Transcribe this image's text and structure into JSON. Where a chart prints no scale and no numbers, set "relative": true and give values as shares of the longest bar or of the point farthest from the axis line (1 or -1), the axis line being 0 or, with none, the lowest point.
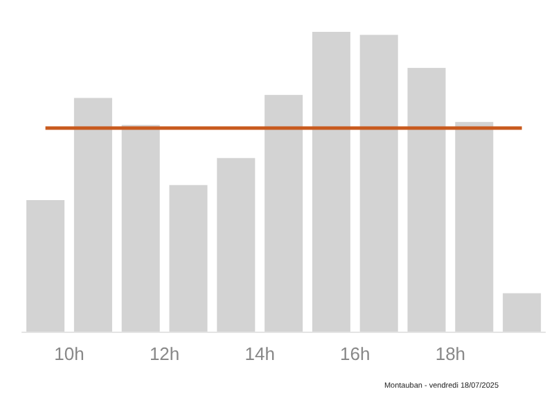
{
  "chart_data": {
    "type": "bar",
    "relative": true,
    "x": [
      9.5,
      10.5,
      11.5,
      12.5,
      13.5,
      14.5,
      15.5,
      16.5,
      17.5,
      18.5,
      19.5
    ],
    "values": [
      0.44,
      0.78,
      0.69,
      0.49,
      0.58,
      0.79,
      1,
      0.99,
      0.88,
      0.7,
      0.13
    ],
    "color": "#d3d3d3",
    "xlim": [
      9,
      20
    ],
    "xticks": [
      {
        "value": 10,
        "label": "10h"
      },
      {
        "value": 12,
        "label": "12h"
      },
      {
        "value": 14,
        "label": "14h"
      },
      {
        "value": 16,
        "label": "16h"
      },
      {
        "value": 18,
        "label": "18h"
      }
    ],
    "ref_lines": [
      {
        "axis": "y",
        "value": 0.68,
        "color": "#c85a1e"
      }
    ],
    "annotations": [
      "Montauban - vendredi 18/07/2025"
    ],
    "grid": false
  }
}
